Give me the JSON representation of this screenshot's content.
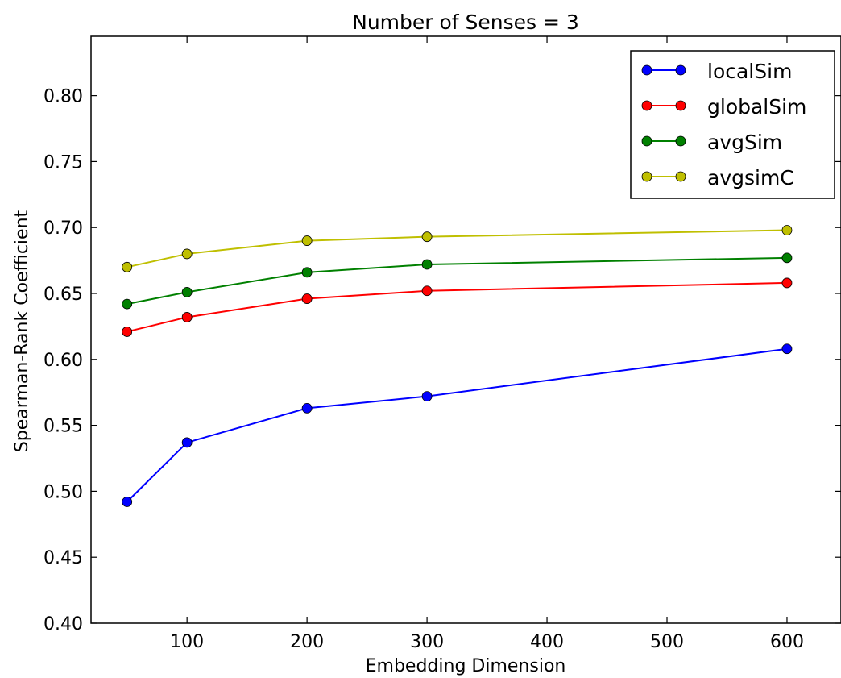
{
  "chart_data": {
    "type": "line",
    "title": "Number of Senses = 3",
    "xlabel": "Embedding Dimension",
    "ylabel": "Spearman-Rank Coefficient",
    "xlim": [
      20,
      645
    ],
    "ylim": [
      0.4,
      0.845
    ],
    "x_ticks": [
      100,
      200,
      300,
      400,
      500,
      600
    ],
    "x_tick_labels": [
      "100",
      "200",
      "300",
      "400",
      "500",
      "600"
    ],
    "y_ticks": [
      0.4,
      0.45,
      0.5,
      0.55,
      0.6,
      0.65,
      0.7,
      0.75,
      0.8
    ],
    "y_tick_labels": [
      "0.40",
      "0.45",
      "0.50",
      "0.55",
      "0.60",
      "0.65",
      "0.70",
      "0.75",
      "0.80"
    ],
    "x": [
      50,
      100,
      200,
      300,
      600
    ],
    "grid": false,
    "legend_position": "top-right",
    "series": [
      {
        "name": "localSim",
        "color": "#0000ff",
        "marker": "circle",
        "values": [
          0.492,
          0.537,
          0.563,
          0.572,
          0.608
        ]
      },
      {
        "name": "globalSim",
        "color": "#ff0000",
        "marker": "circle",
        "values": [
          0.621,
          0.632,
          0.646,
          0.652,
          0.658
        ]
      },
      {
        "name": "avgSim",
        "color": "#008000",
        "marker": "circle",
        "values": [
          0.642,
          0.651,
          0.666,
          0.672,
          0.677
        ]
      },
      {
        "name": "avgsimC",
        "color": "#bfbf00",
        "marker": "circle",
        "values": [
          0.67,
          0.68,
          0.69,
          0.693,
          0.698
        ]
      }
    ]
  }
}
